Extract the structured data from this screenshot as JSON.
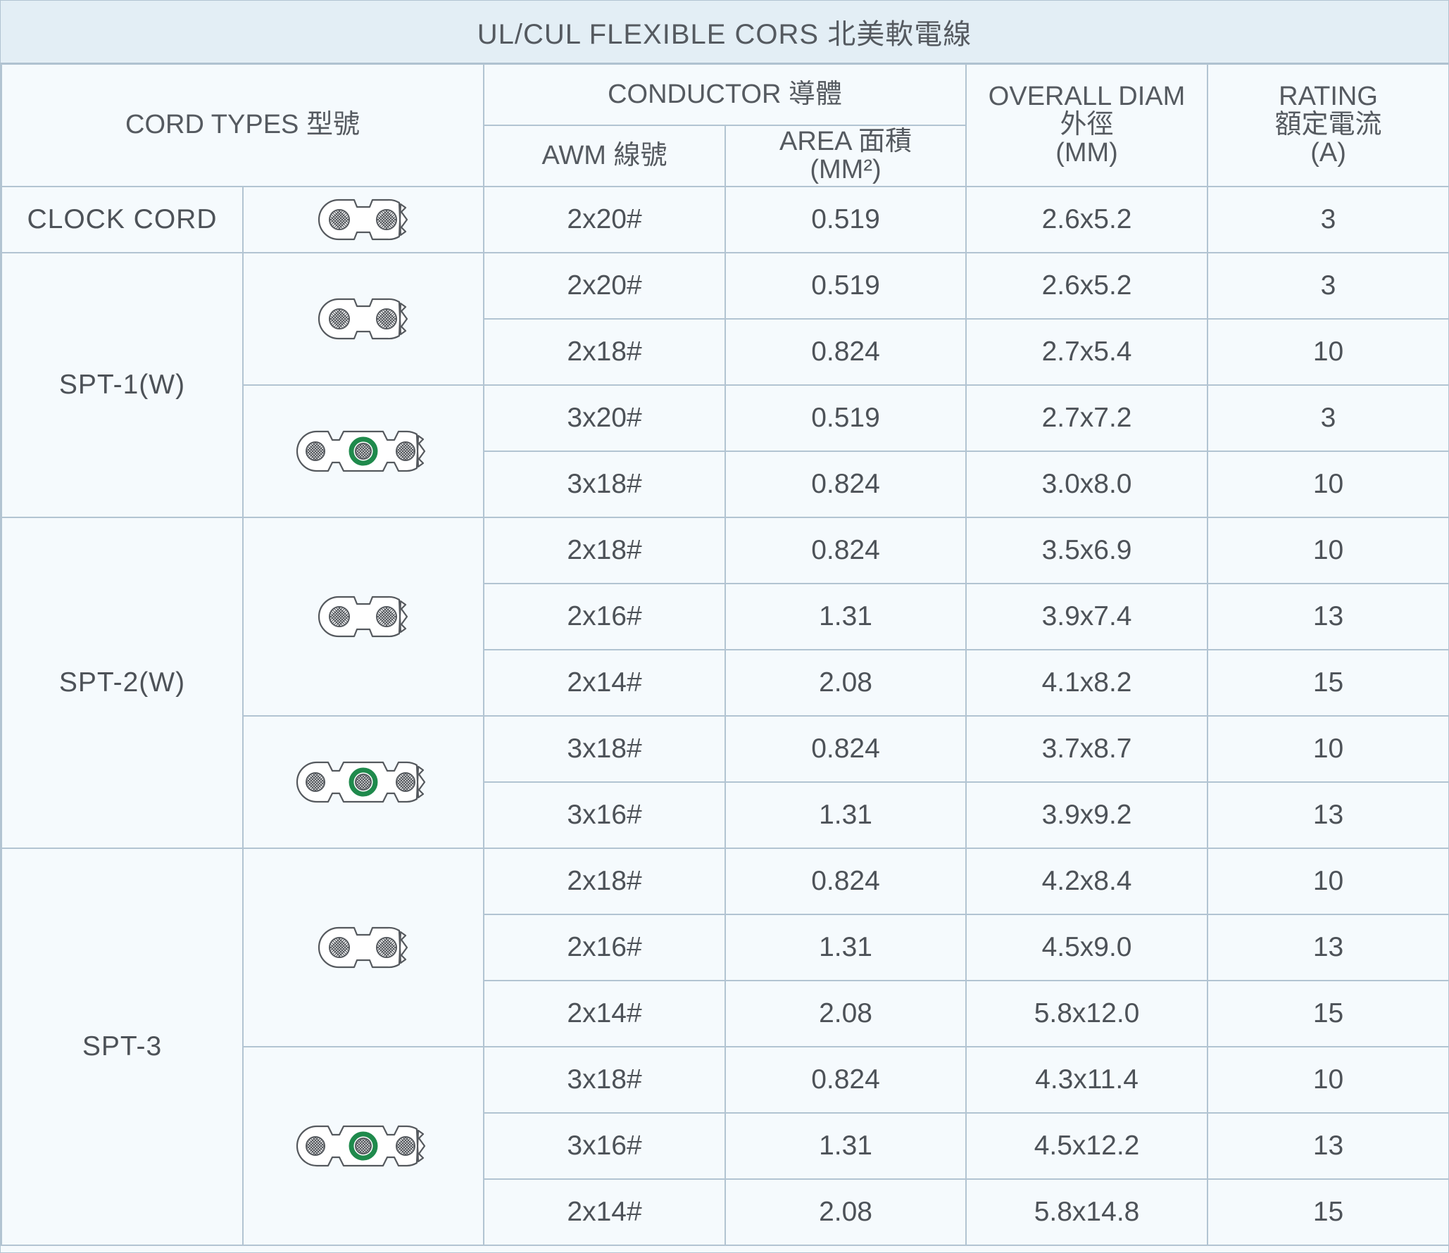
{
  "title": "UL/CUL FLEXIBLE CORS 北美軟電線",
  "headers": {
    "cord_types": "CORD TYPES 型號",
    "conductor": "CONDUCTOR 導體",
    "awm": "AWM 線號",
    "area_line1": "AREA 面積",
    "area_line2": "(MM²)",
    "diam_line1": "OVERALL DIAM",
    "diam_line2": "外徑",
    "diam_line3": "(MM)",
    "rating_line1": "RATING",
    "rating_line2": "額定電流",
    "rating_line3": "(A)"
  },
  "icons": {
    "two_core": "two-conductor-cord-icon",
    "three_core": "three-conductor-cord-icon",
    "ground_color": "#1f8a4c",
    "outline_color": "#55595e"
  },
  "groups": [
    {
      "type": "CLOCK CORD",
      "subgroups": [
        {
          "icon": "two-conductor-cord-icon",
          "rows": [
            {
              "awm": "2x20#",
              "area": "0.519",
              "diam": "2.6x5.2",
              "rating": "3"
            }
          ]
        }
      ]
    },
    {
      "type": "SPT-1(W)",
      "subgroups": [
        {
          "icon": "two-conductor-cord-icon",
          "rows": [
            {
              "awm": "2x20#",
              "area": "0.519",
              "diam": "2.6x5.2",
              "rating": "3"
            },
            {
              "awm": "2x18#",
              "area": "0.824",
              "diam": "2.7x5.4",
              "rating": "10"
            }
          ]
        },
        {
          "icon": "three-conductor-cord-icon",
          "rows": [
            {
              "awm": "3x20#",
              "area": "0.519",
              "diam": "2.7x7.2",
              "rating": "3"
            },
            {
              "awm": "3x18#",
              "area": "0.824",
              "diam": "3.0x8.0",
              "rating": "10"
            }
          ]
        }
      ]
    },
    {
      "type": "SPT-2(W)",
      "subgroups": [
        {
          "icon": "two-conductor-cord-icon",
          "rows": [
            {
              "awm": "2x18#",
              "area": "0.824",
              "diam": "3.5x6.9",
              "rating": "10"
            },
            {
              "awm": "2x16#",
              "area": "1.31",
              "diam": "3.9x7.4",
              "rating": "13"
            },
            {
              "awm": "2x14#",
              "area": "2.08",
              "diam": "4.1x8.2",
              "rating": "15"
            }
          ]
        },
        {
          "icon": "three-conductor-cord-icon",
          "rows": [
            {
              "awm": "3x18#",
              "area": "0.824",
              "diam": "3.7x8.7",
              "rating": "10"
            },
            {
              "awm": "3x16#",
              "area": "1.31",
              "diam": "3.9x9.2",
              "rating": "13"
            }
          ]
        }
      ]
    },
    {
      "type": "SPT-3",
      "subgroups": [
        {
          "icon": "two-conductor-cord-icon",
          "rows": [
            {
              "awm": "2x18#",
              "area": "0.824",
              "diam": "4.2x8.4",
              "rating": "10"
            },
            {
              "awm": "2x16#",
              "area": "1.31",
              "diam": "4.5x9.0",
              "rating": "13"
            },
            {
              "awm": "2x14#",
              "area": "2.08",
              "diam": "5.8x12.0",
              "rating": "15"
            }
          ]
        },
        {
          "icon": "three-conductor-cord-icon",
          "rows": [
            {
              "awm": "3x18#",
              "area": "0.824",
              "diam": "4.3x11.4",
              "rating": "10"
            },
            {
              "awm": "3x16#",
              "area": "1.31",
              "diam": "4.5x12.2",
              "rating": "13"
            },
            {
              "awm": "2x14#",
              "area": "2.08",
              "diam": "5.8x14.8",
              "rating": "15"
            }
          ]
        }
      ]
    }
  ]
}
